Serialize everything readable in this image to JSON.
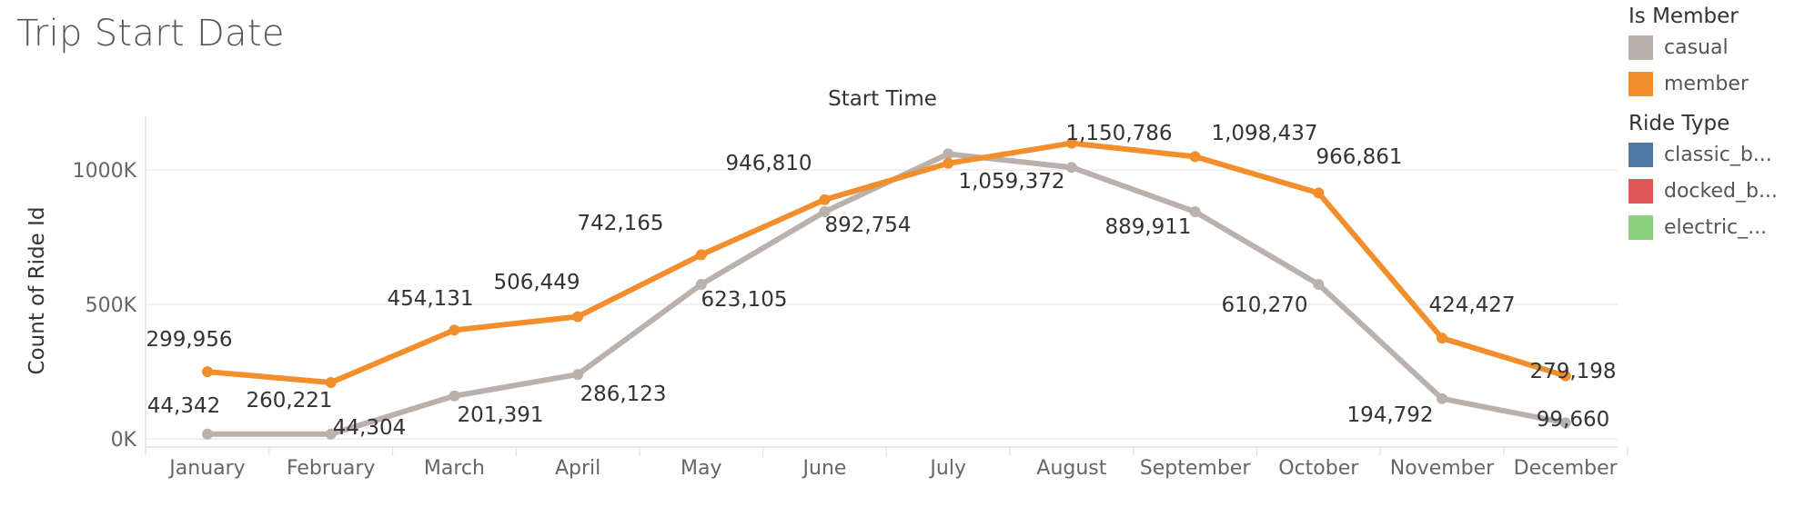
{
  "page_title": "Trip Start Date",
  "legend": {
    "member_group": {
      "title": "Is Member",
      "items": [
        {
          "label": "casual",
          "color": "#bab0ac"
        },
        {
          "label": "member",
          "color": "#f28e2b"
        }
      ]
    },
    "ride_group": {
      "title": "Ride Type",
      "items": [
        {
          "label": "classic_b...",
          "color": "#4e79a7"
        },
        {
          "label": "docked_b...",
          "color": "#e15759"
        },
        {
          "label": "electric_...",
          "color": "#8cd17d"
        }
      ]
    }
  },
  "chart_data": {
    "type": "line",
    "title": "Start Time",
    "xlabel": "",
    "ylabel": "Count of Ride Id",
    "categories": [
      "January",
      "February",
      "March",
      "April",
      "May",
      "June",
      "July",
      "August",
      "September",
      "October",
      "November",
      "December"
    ],
    "yticks": [
      0,
      500000,
      1000000
    ],
    "ytick_labels": [
      "0K",
      "500K",
      "1000K"
    ],
    "ylim": [
      -30000,
      1200000
    ],
    "grid": true,
    "legend_position": "right",
    "series": [
      {
        "name": "casual",
        "color": "#bab0ac",
        "values": [
          18000,
          18000,
          160000,
          240000,
          575000,
          845000,
          1060000,
          1010000,
          845000,
          575000,
          150000,
          60000
        ],
        "labels": [
          "",
          "",
          "",
          "",
          "",
          "",
          "",
          "",
          "",
          "",
          "",
          ""
        ]
      },
      {
        "name": "member",
        "color": "#f28e2b",
        "values": [
          250000,
          210000,
          405000,
          455000,
          685000,
          890000,
          1025000,
          1100000,
          1050000,
          915000,
          375000,
          235000
        ],
        "labels": [
          "",
          "",
          "",
          "",
          "",
          "",
          "",
          "",
          "",
          "",
          "",
          ""
        ]
      }
    ],
    "data_labels": [
      "299,956",
      "44,342",
      "260,221",
      "44,304",
      "454,131",
      "201,391",
      "506,449",
      "286,123",
      "742,165",
      "623,105",
      "946,810",
      "892,754",
      "1,150,786",
      "1,059,372",
      "1,098,437",
      "889,911",
      "966,861",
      "610,270",
      "424,427",
      "194,792",
      "279,198",
      "99,660"
    ]
  }
}
